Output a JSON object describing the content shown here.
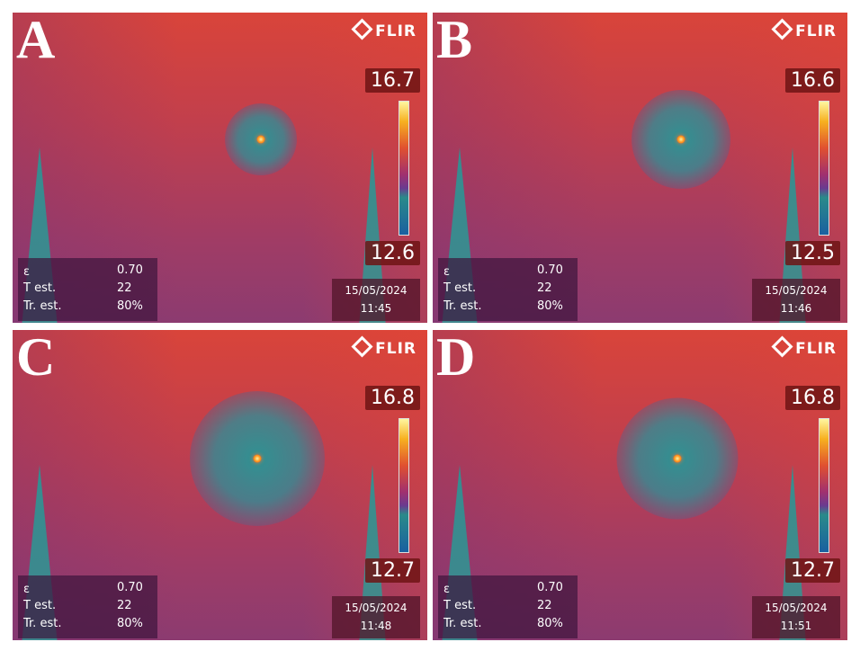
{
  "panels": [
    {
      "label": "A",
      "brand": "FLIR",
      "max": "16.7",
      "min": "12.6",
      "emissivity_label": "ε",
      "emissivity": "0.70",
      "t_label": "T est.",
      "t": "22",
      "tr_label": "Tr. est.",
      "tr": "80%",
      "date": "15/05/2024",
      "time": "11:45"
    },
    {
      "label": "B",
      "brand": "FLIR",
      "max": "16.6",
      "min": "12.5",
      "emissivity_label": "ε",
      "emissivity": "0.70",
      "t_label": "T est.",
      "t": "22",
      "tr_label": "Tr. est.",
      "tr": "80%",
      "date": "15/05/2024",
      "time": "11:46"
    },
    {
      "label": "C",
      "brand": "FLIR",
      "max": "16.8",
      "min": "12.7",
      "emissivity_label": "ε",
      "emissivity": "0.70",
      "t_label": "T est.",
      "t": "22",
      "tr_label": "Tr. est.",
      "tr": "80%",
      "date": "15/05/2024",
      "time": "11:48"
    },
    {
      "label": "D",
      "brand": "FLIR",
      "max": "16.8",
      "min": "12.7",
      "emissivity_label": "ε",
      "emissivity": "0.70",
      "t_label": "T est.",
      "t": "22",
      "tr_label": "Tr. est.",
      "tr": "80%",
      "date": "15/05/2024",
      "time": "11:51"
    }
  ]
}
